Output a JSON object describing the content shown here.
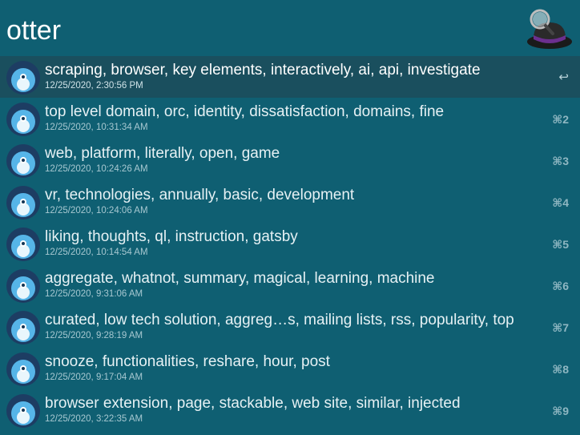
{
  "search": {
    "query": "otter"
  },
  "results": [
    {
      "title": "scraping, browser, key elements, interactively, ai, api, investigate",
      "subtitle": "12/25/2020, 2:30:56 PM",
      "shortcut": "↩"
    },
    {
      "title": "top level domain, orc, identity, dissatisfaction, domains, fine",
      "subtitle": "12/25/2020, 10:31:34 AM",
      "shortcut": "⌘2"
    },
    {
      "title": "web, platform, literally, open, game",
      "subtitle": "12/25/2020, 10:24:26 AM",
      "shortcut": "⌘3"
    },
    {
      "title": "vr, technologies, annually, basic, development",
      "subtitle": "12/25/2020, 10:24:06 AM",
      "shortcut": "⌘4"
    },
    {
      "title": "liking, thoughts, ql, instruction, gatsby",
      "subtitle": "12/25/2020, 10:14:54 AM",
      "shortcut": "⌘5"
    },
    {
      "title": "aggregate, whatnot, summary, magical, learning, machine",
      "subtitle": "12/25/2020, 9:31:06 AM",
      "shortcut": "⌘6"
    },
    {
      "title": "curated, low tech solution, aggreg…s, mailing lists, rss, popularity, top",
      "subtitle": "12/25/2020, 9:28:19 AM",
      "shortcut": "⌘7"
    },
    {
      "title": "snooze, functionalities, reshare, hour, post",
      "subtitle": "12/25/2020, 9:17:04 AM",
      "shortcut": "⌘8"
    },
    {
      "title": "browser extension, page, stackable, web site, similar, injected",
      "subtitle": "12/25/2020, 3:22:35 AM",
      "shortcut": "⌘9"
    }
  ],
  "icons": {
    "result": "otter-app-icon",
    "launcher": "alfred-hat-icon"
  },
  "colors": {
    "background": "#0f5f72",
    "selected": "#1a4f5e"
  }
}
